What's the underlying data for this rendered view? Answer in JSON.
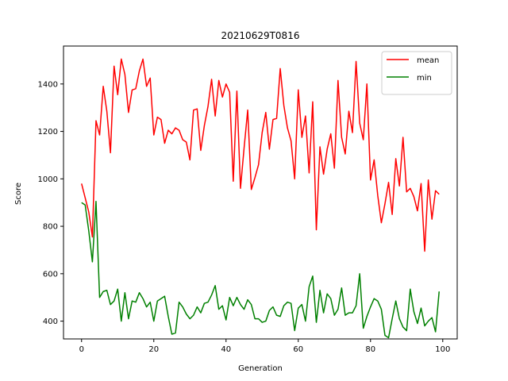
{
  "chart_data": {
    "type": "line",
    "title": "20210629T0816",
    "xlabel": "Generation",
    "ylabel": "Score",
    "xlim": [
      -5,
      104
    ],
    "ylim": [
      325,
      1560
    ],
    "xticks": [
      0,
      20,
      40,
      60,
      80,
      100
    ],
    "yticks": [
      400,
      600,
      800,
      1000,
      1200,
      1400
    ],
    "grid": false,
    "legend_position": "top-right",
    "x": [
      0,
      1,
      2,
      3,
      4,
      5,
      6,
      7,
      8,
      9,
      10,
      11,
      12,
      13,
      14,
      15,
      16,
      17,
      18,
      19,
      20,
      21,
      22,
      23,
      24,
      25,
      26,
      27,
      28,
      29,
      30,
      31,
      32,
      33,
      34,
      35,
      36,
      37,
      38,
      39,
      40,
      41,
      42,
      43,
      44,
      45,
      46,
      47,
      48,
      49,
      50,
      51,
      52,
      53,
      54,
      55,
      56,
      57,
      58,
      59,
      60,
      61,
      62,
      63,
      64,
      65,
      66,
      67,
      68,
      69,
      70,
      71,
      72,
      73,
      74,
      75,
      76,
      77,
      78,
      79,
      80,
      81,
      82,
      83,
      84,
      85,
      86,
      87,
      88,
      89,
      90,
      91,
      92,
      93,
      94,
      95,
      96,
      97,
      98,
      99
    ],
    "series": [
      {
        "name": "mean",
        "color": "#ff0000",
        "values": [
          980,
          920,
          860,
          755,
          1245,
          1185,
          1390,
          1285,
          1110,
          1475,
          1355,
          1505,
          1440,
          1280,
          1375,
          1380,
          1455,
          1505,
          1390,
          1425,
          1185,
          1260,
          1250,
          1150,
          1205,
          1190,
          1215,
          1205,
          1165,
          1155,
          1080,
          1290,
          1295,
          1120,
          1225,
          1305,
          1420,
          1265,
          1415,
          1345,
          1400,
          1365,
          990,
          1370,
          960,
          1130,
          1290,
          955,
          1005,
          1060,
          1195,
          1280,
          1125,
          1250,
          1255,
          1465,
          1310,
          1215,
          1160,
          1000,
          1375,
          1175,
          1265,
          1025,
          1325,
          785,
          1135,
          1020,
          1125,
          1190,
          1045,
          1415,
          1175,
          1105,
          1285,
          1195,
          1495,
          1235,
          1165,
          1400,
          995,
          1080,
          930,
          815,
          895,
          985,
          850,
          1085,
          970,
          1175,
          945,
          960,
          925,
          865,
          980,
          695,
          995,
          830,
          950,
          935
        ]
      },
      {
        "name": "min",
        "color": "#008000",
        "values": [
          900,
          890,
          780,
          650,
          905,
          500,
          525,
          530,
          470,
          485,
          535,
          400,
          520,
          410,
          485,
          480,
          520,
          495,
          460,
          480,
          400,
          485,
          495,
          505,
          420,
          345,
          350,
          480,
          460,
          430,
          410,
          425,
          460,
          435,
          475,
          480,
          510,
          550,
          450,
          465,
          405,
          500,
          465,
          500,
          470,
          450,
          490,
          470,
          410,
          410,
          395,
          400,
          445,
          460,
          425,
          420,
          465,
          480,
          475,
          360,
          455,
          470,
          400,
          545,
          590,
          395,
          530,
          435,
          515,
          495,
          425,
          450,
          540,
          425,
          435,
          435,
          465,
          600,
          370,
          420,
          460,
          495,
          485,
          450,
          340,
          330,
          410,
          485,
          410,
          375,
          360,
          535,
          440,
          390,
          455,
          380,
          400,
          415,
          355,
          525
        ]
      }
    ]
  }
}
